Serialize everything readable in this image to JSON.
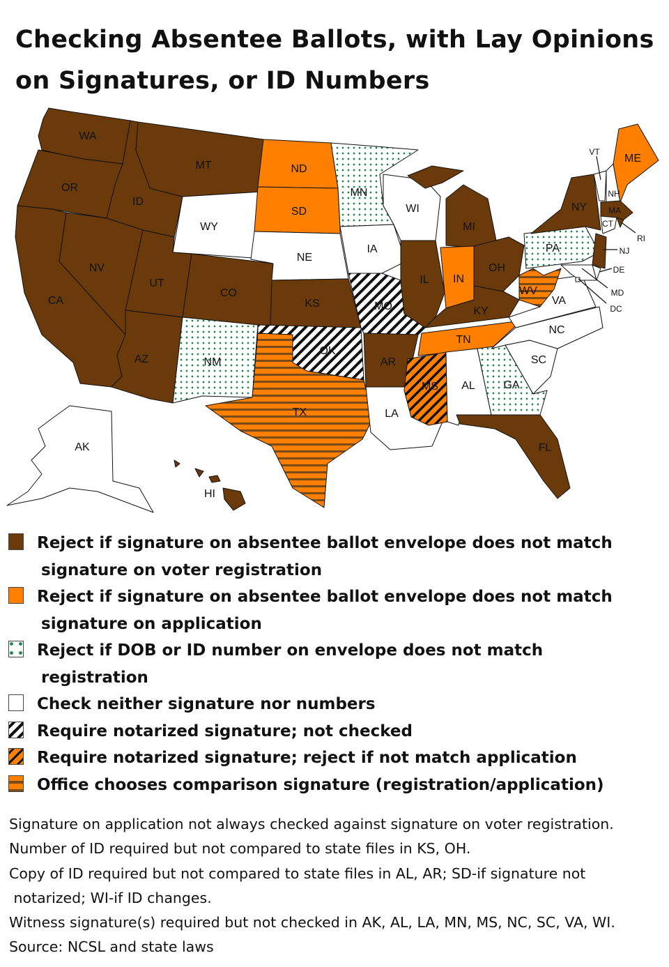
{
  "title": [
    "Checking Absentee Ballots, with Lay Opinions",
    "on Signatures, or ID Numbers"
  ],
  "colors": {
    "registration": "#6b3a0a",
    "application": "#ff8000",
    "dots": "#1a8a4a",
    "none": "#ffffff",
    "border": "#111111"
  },
  "categories": {
    "registration": {
      "label": [
        "Reject if signature on absentee ballot envelope does not match",
        "signature on voter registration"
      ]
    },
    "application": {
      "label": [
        "Reject if signature on absentee ballot envelope does not match",
        "signature on application"
      ]
    },
    "id_number": {
      "label": [
        "Reject if DOB or ID number on envelope does not match",
        "registration"
      ]
    },
    "none": {
      "label": [
        "Check neither signature nor numbers"
      ]
    },
    "notarized_unchecked": {
      "label": [
        "Require notarized signature; not checked"
      ]
    },
    "notarized_application": {
      "label": [
        "Require notarized signature; reject if not match application"
      ]
    },
    "office_chooses": {
      "label": [
        "Office chooses comparison signature (registration/application)"
      ]
    }
  },
  "states": [
    {
      "code": "WA",
      "category": "registration"
    },
    {
      "code": "OR",
      "category": "registration"
    },
    {
      "code": "CA",
      "category": "registration"
    },
    {
      "code": "ID",
      "category": "registration"
    },
    {
      "code": "NV",
      "category": "registration"
    },
    {
      "code": "MT",
      "category": "registration"
    },
    {
      "code": "WY",
      "category": "none"
    },
    {
      "code": "UT",
      "category": "registration"
    },
    {
      "code": "AZ",
      "category": "registration"
    },
    {
      "code": "CO",
      "category": "registration"
    },
    {
      "code": "NM",
      "category": "id_number"
    },
    {
      "code": "ND",
      "category": "application"
    },
    {
      "code": "SD",
      "category": "application"
    },
    {
      "code": "NE",
      "category": "none"
    },
    {
      "code": "KS",
      "category": "registration"
    },
    {
      "code": "OK",
      "category": "notarized_unchecked"
    },
    {
      "code": "TX",
      "category": "office_chooses"
    },
    {
      "code": "MN",
      "category": "id_number"
    },
    {
      "code": "IA",
      "category": "none"
    },
    {
      "code": "MO",
      "category": "notarized_unchecked"
    },
    {
      "code": "AR",
      "category": "registration"
    },
    {
      "code": "LA",
      "category": "none"
    },
    {
      "code": "WI",
      "category": "none"
    },
    {
      "code": "IL",
      "category": "registration"
    },
    {
      "code": "MI",
      "category": "registration"
    },
    {
      "code": "IN",
      "category": "application"
    },
    {
      "code": "OH",
      "category": "registration"
    },
    {
      "code": "KY",
      "category": "registration"
    },
    {
      "code": "TN",
      "category": "application"
    },
    {
      "code": "MS",
      "category": "notarized_application"
    },
    {
      "code": "AL",
      "category": "none"
    },
    {
      "code": "GA",
      "category": "id_number"
    },
    {
      "code": "FL",
      "category": "registration"
    },
    {
      "code": "SC",
      "category": "none"
    },
    {
      "code": "NC",
      "category": "none"
    },
    {
      "code": "VA",
      "category": "none"
    },
    {
      "code": "WV",
      "category": "office_chooses"
    },
    {
      "code": "PA",
      "category": "id_number"
    },
    {
      "code": "NY",
      "category": "registration"
    },
    {
      "code": "VT",
      "category": "none"
    },
    {
      "code": "NH",
      "category": "none"
    },
    {
      "code": "ME",
      "category": "application"
    },
    {
      "code": "MA",
      "category": "registration"
    },
    {
      "code": "CT",
      "category": "none"
    },
    {
      "code": "RI",
      "category": "registration"
    },
    {
      "code": "NJ",
      "category": "registration"
    },
    {
      "code": "DE",
      "category": "none"
    },
    {
      "code": "MD",
      "category": "none"
    },
    {
      "code": "DC",
      "category": "none"
    },
    {
      "code": "AK",
      "category": "none"
    },
    {
      "code": "HI",
      "category": "registration"
    }
  ],
  "notes": [
    "Signature on application not always checked against signature on voter registration.",
    "Number of ID required but not compared to state files in KS, OH.",
    "Copy of ID required but not compared to state files in AL, AR; SD-if signature not",
    " notarized; WI-if ID changes.",
    "Witness signature(s) required but not checked in AK, AL, LA, MN, MS, NC, SC, VA, WI.",
    "Source: NCSL and state laws"
  ]
}
